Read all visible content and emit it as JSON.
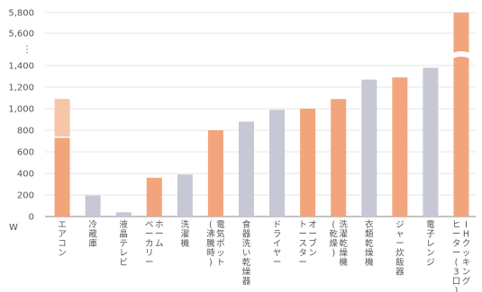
{
  "chart_data": {
    "type": "bar",
    "title": "",
    "xlabel": "",
    "ylabel": "",
    "unit_label": "W",
    "ylim": [
      0,
      5800
    ],
    "axis_break": {
      "lower_max": 1400,
      "upper_ticks": [
        5600,
        5800
      ],
      "dots": "⋮"
    },
    "yticks": [
      {
        "value": 0,
        "label": "0"
      },
      {
        "value": 200,
        "label": "200"
      },
      {
        "value": 400,
        "label": "400"
      },
      {
        "value": 600,
        "label": "600"
      },
      {
        "value": 800,
        "label": "800"
      },
      {
        "value": 1000,
        "label": "1,000"
      },
      {
        "value": 1200,
        "label": "1,200"
      },
      {
        "value": 1400,
        "label": "1,400"
      },
      {
        "value": 5600,
        "label": "5,600"
      },
      {
        "value": 5800,
        "label": "5,800"
      }
    ],
    "colors": {
      "orange": "#f2a57c",
      "gray": "#c6c8d6",
      "orange_light": "#f7c5a8"
    },
    "categories": [
      {
        "label": "エアコン",
        "value": 1090,
        "range_low": 730,
        "color": "orange"
      },
      {
        "label": "冷蔵庫",
        "value": 195,
        "color": "gray"
      },
      {
        "label": "液晶テレビ",
        "value": 40,
        "color": "gray"
      },
      {
        "label": "ホーム\nベーカリー",
        "value": 360,
        "color": "orange"
      },
      {
        "label": "洗濯機",
        "value": 390,
        "color": "gray"
      },
      {
        "label": "電気ポット\n(沸騰時)",
        "value": 800,
        "color": "orange"
      },
      {
        "label": "食器洗い乾燥器",
        "value": 880,
        "color": "gray"
      },
      {
        "label": "ドライヤー",
        "value": 990,
        "color": "gray"
      },
      {
        "label": "オーブン\nトースター",
        "value": 1000,
        "color": "orange"
      },
      {
        "label": "洗濯乾燥機\n(乾燥)",
        "value": 1090,
        "color": "orange"
      },
      {
        "label": "衣類乾燥機",
        "value": 1270,
        "color": "gray"
      },
      {
        "label": "ジャー炊飯器",
        "value": 1290,
        "color": "orange"
      },
      {
        "label": "電子レンジ",
        "value": 1380,
        "color": "gray"
      },
      {
        "label": "IHクッキング\nヒーター(3口)",
        "value": 5800,
        "color": "orange",
        "broken": true
      }
    ]
  }
}
